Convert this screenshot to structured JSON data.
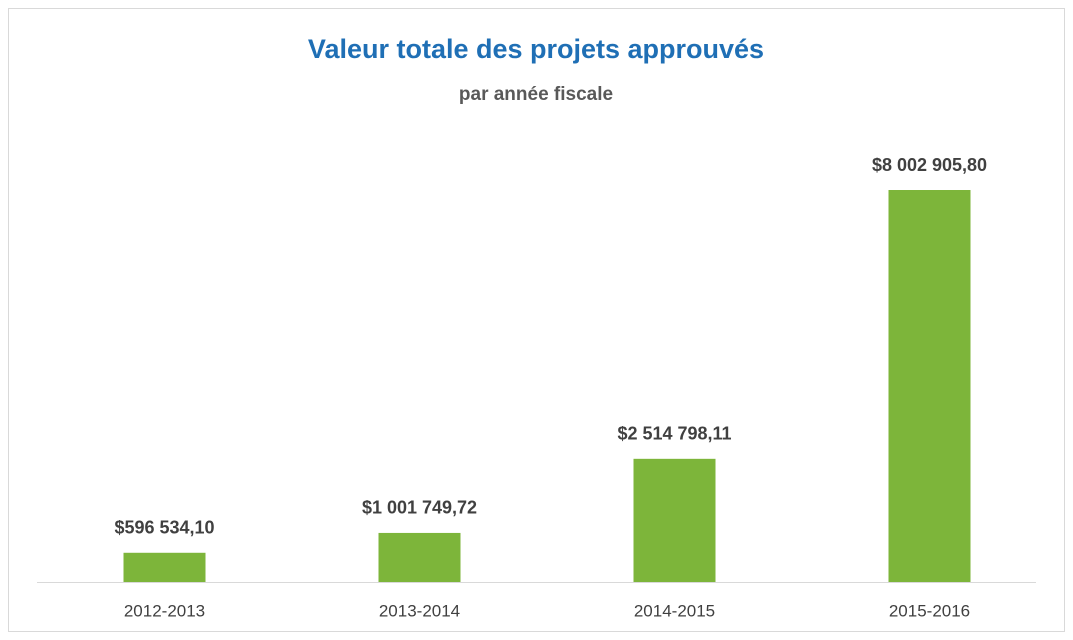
{
  "chart_data": {
    "type": "bar",
    "title": "Valeur totale des projets approuvés",
    "subtitle": "par année fiscale",
    "categories": [
      "2012-2013",
      "2013-2014",
      "2014-2015",
      "2015-2016"
    ],
    "values": [
      596534.1,
      1001749.72,
      2514798.11,
      8002905.8
    ],
    "value_labels": [
      "$596 534,10",
      "$1 001 749,72",
      "$2 514 798,11",
      "$8 002 905,80"
    ],
    "color": "#7db53a"
  }
}
